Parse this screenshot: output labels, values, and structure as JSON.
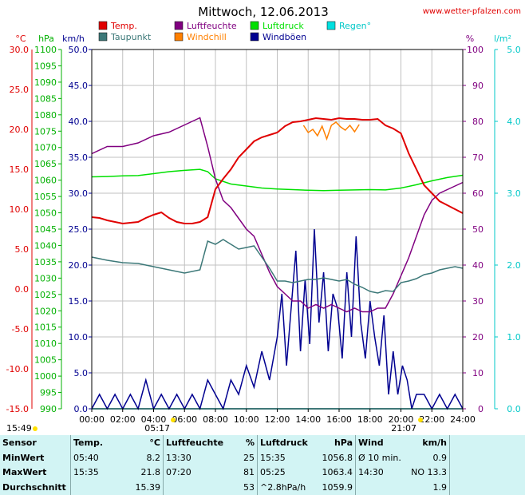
{
  "title": "Mittwoch, 12.06.2013",
  "site": "www.wetter-pfalzen.com",
  "colors": {
    "temp": "#e00000",
    "taupunkt": "#3c7878",
    "luftfeuchte": "#800080",
    "windchill": "#ff8000",
    "luftdruck": "#00e000",
    "windboeen": "#000090",
    "regen": "#00e0e0"
  },
  "legend": [
    {
      "label": "Temp.",
      "color": "#e00000"
    },
    {
      "label": "Taupunkt",
      "color": "#3c7878"
    },
    {
      "label": "Luftfeuchte",
      "color": "#800080"
    },
    {
      "label": "Windchill",
      "color": "#ff8000"
    },
    {
      "label": "Luftdruck",
      "color": "#00e000"
    },
    {
      "label": "Windböen",
      "color": "#000090"
    },
    {
      "label": "Regen°",
      "color": "#00e0e0"
    }
  ],
  "axis_units": {
    "temp": "°C",
    "pressure": "hPa",
    "wind": "km/h",
    "humidity": "%",
    "rain": "l/m²"
  },
  "axis_ticks": {
    "temp": [
      "30.0",
      "25.0",
      "20.0",
      "15.0",
      "10.0",
      "5.0",
      "0.0",
      "-5.0",
      "-10.0",
      "-15.0"
    ],
    "pressure": [
      "1100",
      "1095",
      "1090",
      "1085",
      "1080",
      "1075",
      "1070",
      "1065",
      "1060",
      "1055",
      "1050",
      "1045",
      "1040",
      "1035",
      "1030",
      "1025",
      "1020",
      "1015",
      "1010",
      "1005",
      "1000",
      "995",
      "990"
    ],
    "wind": [
      "50.0",
      "45.0",
      "40.0",
      "35.0",
      "30.0",
      "25.0",
      "20.0",
      "15.0",
      "10.0",
      "5.0",
      "0.0"
    ],
    "humidity": [
      "100",
      "90",
      "80",
      "70",
      "60",
      "50",
      "40",
      "30",
      "20",
      "10",
      "0"
    ],
    "rain": [
      "5.0",
      "4.0",
      "3.0",
      "2.0",
      "1.0",
      "0.0"
    ],
    "x": [
      "00:00",
      "02:00",
      "04:00",
      "06:00",
      "08:00",
      "10:00",
      "12:00",
      "14:00",
      "16:00",
      "18:00",
      "20:00",
      "22:00",
      "24:00"
    ]
  },
  "sun": {
    "sunrise": "05:17",
    "sunset": "21:07",
    "daylength": "15:49"
  },
  "chart_data": {
    "type": "line",
    "title": "Mittwoch, 12.06.2013",
    "x_range": [
      "00:00",
      "24:00"
    ],
    "ylim_temp": [
      -15,
      30
    ],
    "ylim_wind": [
      0,
      50
    ],
    "ylim_pressure": [
      990,
      1100
    ],
    "ylim_humidity": [
      0,
      100
    ],
    "ylim_rain": [
      0,
      5
    ],
    "grid": true,
    "series": [
      {
        "name": "Temp.",
        "unit": "°C",
        "x_hours": [
          0,
          0.5,
          1,
          2,
          2.5,
          3,
          3.5,
          4,
          4.5,
          5,
          5.5,
          6,
          6.5,
          7,
          7.5,
          8,
          8.5,
          9,
          9.5,
          10,
          10.5,
          11,
          11.5,
          12,
          12.5,
          13,
          13.5,
          14,
          14.5,
          15,
          15.5,
          16,
          16.5,
          17,
          17.5,
          18,
          18.5,
          19,
          19.5,
          20,
          20.5,
          21,
          21.5,
          22,
          22.5,
          23,
          23.5,
          24
        ],
        "values": [
          9.0,
          8.9,
          8.6,
          8.2,
          8.3,
          8.4,
          8.9,
          9.3,
          9.6,
          8.9,
          8.4,
          8.2,
          8.2,
          8.4,
          9.0,
          12.5,
          13.8,
          15.0,
          16.5,
          17.5,
          18.5,
          19.0,
          19.3,
          19.6,
          20.4,
          20.9,
          21.0,
          21.2,
          21.4,
          21.3,
          21.2,
          21.4,
          21.3,
          21.3,
          21.2,
          21.2,
          21.3,
          20.5,
          20.1,
          19.5,
          17.0,
          15.0,
          13.0,
          12.0,
          11.0,
          10.5,
          10.0,
          9.5
        ]
      },
      {
        "name": "Taupunkt",
        "unit": "°C",
        "x_hours": [
          0,
          1,
          2,
          3,
          4,
          5,
          6,
          7,
          7.5,
          8,
          8.5,
          9,
          9.5,
          10,
          10.5,
          11,
          11.5,
          12,
          12.5,
          13,
          13.5,
          14,
          14.5,
          15,
          15.5,
          16,
          16.5,
          17,
          17.5,
          18,
          18.5,
          19,
          19.5,
          20,
          20.5,
          21,
          21.5,
          22,
          22.5,
          23,
          23.5,
          24
        ],
        "values": [
          4.0,
          3.6,
          3.3,
          3.2,
          2.8,
          2.4,
          2.0,
          2.4,
          6.0,
          5.6,
          6.2,
          5.6,
          5.0,
          5.2,
          5.4,
          4.0,
          2.6,
          1.0,
          1.0,
          0.8,
          1.0,
          1.2,
          1.2,
          1.4,
          1.2,
          1.0,
          1.2,
          0.6,
          0.2,
          -0.3,
          -0.5,
          -0.2,
          -0.3,
          0.8,
          1.0,
          1.3,
          1.8,
          2.0,
          2.4,
          2.6,
          2.8,
          2.6
        ]
      },
      {
        "name": "Luftfeuchte",
        "unit": "%",
        "x_hours": [
          0,
          1,
          2,
          3,
          4,
          5,
          6,
          7,
          7.5,
          8,
          8.5,
          9,
          9.5,
          10,
          10.5,
          11,
          11.5,
          12,
          12.5,
          13,
          13.5,
          14,
          14.5,
          15,
          15.5,
          16,
          16.5,
          17,
          17.5,
          18,
          18.5,
          19,
          19.5,
          20,
          20.5,
          21,
          21.5,
          22,
          22.5,
          23,
          23.5,
          24
        ],
        "values": [
          71,
          73,
          73,
          74,
          76,
          77,
          79,
          81,
          73,
          64,
          58,
          56,
          53,
          50,
          48,
          43,
          38,
          34,
          32,
          30,
          30,
          28,
          29,
          28,
          29,
          28,
          27,
          28,
          27,
          27,
          28,
          28,
          32,
          37,
          42,
          48,
          54,
          58,
          60,
          61,
          62,
          63
        ]
      },
      {
        "name": "Windchill",
        "unit": "°C",
        "x_hours": [
          13.7,
          14.0,
          14.3,
          14.6,
          14.9,
          15.2,
          15.5,
          15.8,
          16.1,
          16.4,
          16.7,
          17.0,
          17.3
        ],
        "values": [
          20.5,
          19.6,
          20.0,
          19.2,
          20.4,
          18.8,
          20.5,
          20.9,
          20.3,
          19.9,
          20.5,
          19.7,
          20.6
        ]
      },
      {
        "name": "Luftdruck",
        "unit": "hPa",
        "x_hours": [
          0,
          1,
          2,
          3,
          4,
          5,
          6,
          7,
          7.5,
          8,
          9,
          10,
          11,
          12,
          13,
          14,
          15,
          16,
          17,
          18,
          19,
          20,
          21,
          22,
          23,
          24
        ],
        "values": [
          1061.0,
          1061.1,
          1061.3,
          1061.4,
          1062.0,
          1062.6,
          1063.0,
          1063.3,
          1062.6,
          1060.4,
          1058.8,
          1058.2,
          1057.6,
          1057.3,
          1057.1,
          1056.9,
          1056.8,
          1056.9,
          1057.0,
          1057.1,
          1057.0,
          1057.6,
          1058.6,
          1059.8,
          1060.8,
          1061.5
        ]
      },
      {
        "name": "Windböen",
        "unit": "km/h",
        "x_hours": [
          0,
          0.5,
          1,
          1.5,
          2,
          2.5,
          3,
          3.5,
          4,
          4.5,
          5,
          5.5,
          6,
          6.5,
          7,
          7.5,
          8,
          8.5,
          9,
          9.5,
          10,
          10.5,
          11,
          11.5,
          12,
          12.3,
          12.6,
          12.9,
          13.2,
          13.5,
          13.8,
          14.1,
          14.4,
          14.7,
          15.0,
          15.3,
          15.6,
          15.9,
          16.2,
          16.5,
          16.8,
          17.1,
          17.4,
          17.7,
          18.0,
          18.3,
          18.6,
          18.9,
          19.2,
          19.5,
          19.8,
          20.1,
          20.4,
          20.7,
          21.0,
          21.5,
          22,
          22.5,
          23,
          23.5,
          24
        ],
        "values": [
          0,
          2,
          0,
          2,
          0,
          2,
          0,
          4,
          0,
          2,
          0,
          2,
          0,
          2,
          0,
          4,
          2,
          0,
          4,
          2,
          6,
          3,
          8,
          4,
          10,
          16,
          6,
          14,
          22,
          8,
          18,
          9,
          25,
          12,
          19,
          8,
          16,
          14,
          7,
          19,
          10,
          24,
          12,
          7,
          15,
          10,
          6,
          13,
          2,
          8,
          2,
          6,
          4,
          0,
          2,
          2,
          0,
          2,
          0,
          2,
          0
        ]
      },
      {
        "name": "Regen°",
        "unit": "l/m²",
        "x_hours": [
          0,
          24
        ],
        "values": [
          0,
          0
        ]
      }
    ]
  },
  "stats": {
    "header": {
      "sensor": "Sensor",
      "temp": "Temp.",
      "temp_unit": "°C",
      "hum": "Luftfeuchte",
      "hum_unit": "%",
      "press": "Luftdruck",
      "press_unit": "hPa",
      "wind": "Wind",
      "wind_unit": "km/h"
    },
    "rows": [
      {
        "label": "MinWert",
        "temp_time": "05:40",
        "temp_val": "8.2",
        "hum_time": "13:30",
        "hum_val": "25",
        "press_time": "15:35",
        "press_val": "1056.8",
        "wind_time": "Ø 10 min.",
        "wind_val": "0.9"
      },
      {
        "label": "MaxWert",
        "temp_time": "15:35",
        "temp_val": "21.8",
        "hum_time": "07:20",
        "hum_val": "81",
        "press_time": "05:25",
        "press_val": "1063.4",
        "wind_time": "14:30",
        "wind_val": "NO 13.3"
      },
      {
        "label": "Durchschnitt",
        "temp_time": "",
        "temp_val": "15.39",
        "hum_time": "",
        "hum_val": "53",
        "press_time": "^2.8hPa/h",
        "press_val": "1059.9",
        "wind_time": "",
        "wind_val": "1.9"
      }
    ]
  }
}
